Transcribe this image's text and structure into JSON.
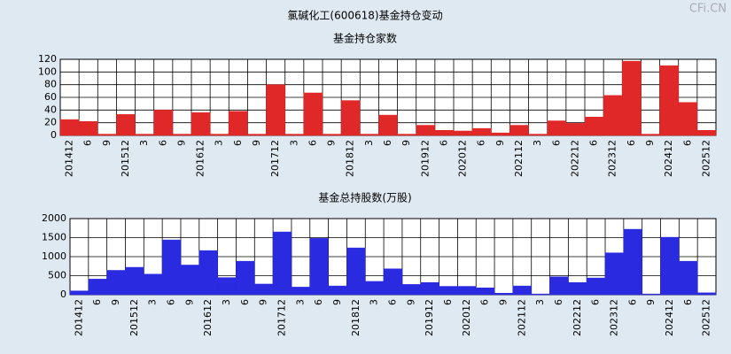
{
  "title": "氯碱化工(600618)基金持仓变动",
  "watermark": "CFi.CN",
  "chart_data": [
    {
      "type": "bar",
      "title": "基金持仓家数",
      "color": "#e02828",
      "categories": [
        "201412",
        "6",
        "9",
        "201512",
        "3",
        "6",
        "9",
        "201612",
        "3",
        "6",
        "9",
        "201712",
        "3",
        "6",
        "9",
        "201812",
        "3",
        "6",
        "9",
        "201912",
        "6",
        "202012",
        "6",
        "9",
        "202112",
        "3",
        "6",
        "202212",
        "6",
        "202312",
        "6",
        "9",
        "202412",
        "6",
        "202512"
      ],
      "values": [
        25,
        22,
        2,
        33,
        2,
        40,
        2,
        36,
        2,
        38,
        2,
        80,
        2,
        67,
        2,
        55,
        2,
        32,
        2,
        16,
        8,
        7,
        11,
        4,
        16,
        2,
        23,
        19,
        29,
        63,
        117,
        2,
        110,
        52,
        8
      ],
      "ylim": [
        0,
        120
      ],
      "yticks": [
        0,
        20,
        40,
        60,
        80,
        100,
        120
      ],
      "grid": true
    },
    {
      "type": "bar",
      "title": "基金总持股数(万股)",
      "color": "#2a2ae0",
      "categories": [
        "201412",
        "6",
        "9",
        "201512",
        "3",
        "6",
        "9",
        "201612",
        "3",
        "6",
        "9",
        "201712",
        "3",
        "6",
        "9",
        "201812",
        "3",
        "6",
        "9",
        "201912",
        "6",
        "202012",
        "6",
        "9",
        "202112",
        "3",
        "6",
        "202212",
        "6",
        "202312",
        "6",
        "9",
        "202412",
        "6",
        "202512"
      ],
      "values": [
        100,
        410,
        640,
        720,
        540,
        1440,
        780,
        1160,
        450,
        880,
        280,
        1650,
        200,
        1480,
        230,
        1230,
        350,
        680,
        270,
        320,
        220,
        220,
        180,
        40,
        230,
        20,
        470,
        320,
        440,
        1100,
        1720,
        20,
        1510,
        880,
        50
      ],
      "ylim": [
        0,
        2000
      ],
      "yticks": [
        0,
        500,
        1000,
        1500,
        2000
      ],
      "grid": true
    }
  ]
}
